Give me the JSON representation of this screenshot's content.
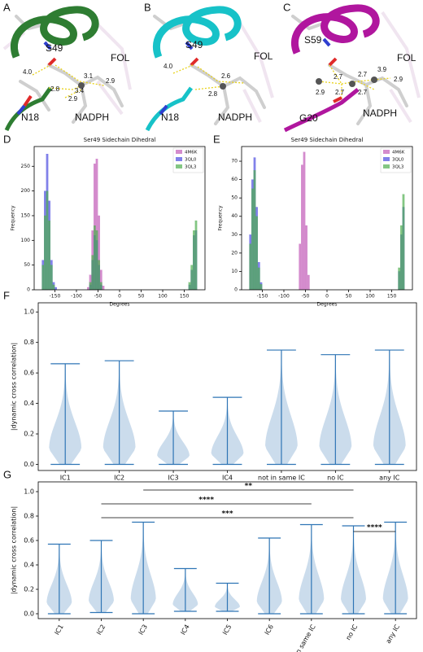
{
  "structures": [
    {
      "panel": "A",
      "labels": [
        "S49",
        "FOL",
        "NADPH",
        "N18"
      ],
      "distances": [
        "4.0",
        "3.1",
        "2.9",
        "2.8",
        "3.4",
        "2.9"
      ]
    },
    {
      "panel": "B",
      "labels": [
        "S49",
        "FOL",
        "NADPH",
        "N18"
      ],
      "distances": [
        "4.0",
        "2.6",
        "2.8"
      ]
    },
    {
      "panel": "C",
      "labels": [
        "S59",
        "FOL",
        "NADPH",
        "G20"
      ],
      "distances": [
        "2.7",
        "3.9",
        "2.9",
        "2.7",
        "2.9",
        "2.7",
        "2.7"
      ]
    }
  ],
  "chart_data": [
    {
      "type": "histogram",
      "panel": "D",
      "title": "Ser49 Sidechain Dihedral",
      "x_label": "Degrees",
      "y_label": "Frequency",
      "bins": [
        -180,
        -175,
        -170,
        -165,
        -160,
        -155,
        -150,
        -145,
        -140,
        -135,
        -130,
        -125,
        -120,
        -115,
        -110,
        -105,
        -100,
        -95,
        -90,
        -85,
        -80,
        -75,
        -70,
        -65,
        -60,
        -55,
        -50,
        -45,
        -40,
        -35,
        -30,
        -25,
        -20,
        -15,
        -10,
        -5,
        0,
        5,
        10,
        15,
        20,
        25,
        30,
        35,
        40,
        45,
        50,
        55,
        60,
        65,
        70,
        75,
        80,
        85,
        90,
        95,
        100,
        105,
        110,
        115,
        120,
        125,
        130,
        135,
        140,
        145,
        150,
        155,
        160,
        165,
        170,
        175,
        180
      ],
      "series": [
        {
          "name": "4M6K",
          "color": "#c25bb8",
          "values": [
            0,
            0,
            0,
            0,
            0,
            0,
            0,
            0,
            0,
            0,
            0,
            0,
            0,
            0,
            0,
            0,
            0,
            0,
            0,
            0,
            0,
            5,
            30,
            120,
            255,
            265,
            150,
            40,
            8,
            0,
            0,
            0,
            0,
            0,
            0,
            0,
            0,
            0,
            0,
            0,
            0,
            0,
            0,
            0,
            0,
            0,
            0,
            0,
            0,
            0,
            0,
            0,
            0,
            0,
            0,
            0,
            0,
            0,
            0,
            0,
            0,
            0,
            0,
            0,
            0,
            0,
            0,
            0,
            0,
            0,
            0,
            0
          ]
        },
        {
          "name": "3QL0",
          "color": "#4b4be0",
          "values": [
            60,
            200,
            275,
            180,
            60,
            15,
            5,
            0,
            0,
            0,
            0,
            0,
            0,
            0,
            0,
            0,
            0,
            0,
            0,
            0,
            0,
            0,
            10,
            60,
            110,
            100,
            50,
            10,
            0,
            0,
            0,
            0,
            0,
            0,
            0,
            0,
            0,
            0,
            0,
            0,
            0,
            0,
            0,
            0,
            0,
            0,
            0,
            0,
            0,
            0,
            0,
            0,
            0,
            0,
            0,
            0,
            0,
            0,
            0,
            0,
            0,
            0,
            0,
            0,
            0,
            0,
            0,
            0,
            10,
            40,
            110,
            120
          ]
        },
        {
          "name": "3QL3",
          "color": "#4fae4f",
          "values": [
            50,
            150,
            200,
            140,
            50,
            10,
            0,
            0,
            0,
            0,
            0,
            0,
            0,
            0,
            0,
            0,
            0,
            0,
            0,
            0,
            0,
            0,
            15,
            70,
            130,
            120,
            60,
            15,
            0,
            0,
            0,
            0,
            0,
            0,
            0,
            0,
            0,
            0,
            0,
            0,
            0,
            0,
            0,
            0,
            0,
            0,
            0,
            0,
            0,
            0,
            0,
            0,
            0,
            0,
            0,
            0,
            0,
            0,
            0,
            0,
            0,
            0,
            0,
            0,
            0,
            0,
            0,
            0,
            15,
            50,
            120,
            140
          ]
        }
      ],
      "xlim": [
        -198,
        198
      ],
      "xticks": [
        -150,
        -100,
        -50,
        0,
        50,
        100,
        150
      ],
      "ylim": [
        0,
        290
      ],
      "yticks": [
        0,
        50,
        100,
        150,
        200,
        250
      ],
      "legend": "upper right"
    },
    {
      "type": "histogram",
      "panel": "E",
      "title": "Ser49 Sidechain Dihedral",
      "x_label": "Degrees",
      "y_label": "Frequency",
      "bins": [
        -180,
        -175,
        -170,
        -165,
        -160,
        -155,
        -150,
        -145,
        -140,
        -135,
        -130,
        -125,
        -120,
        -115,
        -110,
        -105,
        -100,
        -95,
        -90,
        -85,
        -80,
        -75,
        -70,
        -65,
        -60,
        -55,
        -50,
        -45,
        -40,
        -35,
        -30,
        -25,
        -20,
        -15,
        -10,
        -5,
        0,
        5,
        10,
        15,
        20,
        25,
        30,
        35,
        40,
        45,
        50,
        55,
        60,
        65,
        70,
        75,
        80,
        85,
        90,
        95,
        100,
        105,
        110,
        115,
        120,
        125,
        130,
        135,
        140,
        145,
        150,
        155,
        160,
        165,
        170,
        175,
        180
      ],
      "series": [
        {
          "name": "4M6K",
          "color": "#c25bb8",
          "values": [
            0,
            0,
            0,
            0,
            0,
            0,
            0,
            0,
            0,
            0,
            0,
            0,
            0,
            0,
            0,
            0,
            0,
            0,
            0,
            0,
            0,
            0,
            0,
            25,
            68,
            75,
            35,
            8,
            0,
            0,
            0,
            0,
            0,
            0,
            0,
            0,
            0,
            0,
            0,
            0,
            0,
            0,
            0,
            0,
            0,
            0,
            0,
            0,
            0,
            0,
            0,
            0,
            0,
            0,
            0,
            0,
            0,
            0,
            0,
            0,
            0,
            0,
            0,
            0,
            0,
            0,
            0,
            0,
            0,
            0,
            0,
            0
          ]
        },
        {
          "name": "3QL0",
          "color": "#4b4be0",
          "values": [
            30,
            60,
            72,
            45,
            15,
            4,
            0,
            0,
            0,
            0,
            0,
            0,
            0,
            0,
            0,
            0,
            0,
            0,
            0,
            0,
            0,
            0,
            0,
            0,
            0,
            0,
            0,
            0,
            0,
            0,
            0,
            0,
            0,
            0,
            0,
            0,
            0,
            0,
            0,
            0,
            0,
            0,
            0,
            0,
            0,
            0,
            0,
            0,
            0,
            0,
            0,
            0,
            0,
            0,
            0,
            0,
            0,
            0,
            0,
            0,
            0,
            0,
            0,
            0,
            0,
            0,
            0,
            0,
            0,
            10,
            30,
            45
          ]
        },
        {
          "name": "3QL3",
          "color": "#4fae4f",
          "values": [
            25,
            55,
            65,
            40,
            12,
            3,
            0,
            0,
            0,
            0,
            0,
            0,
            0,
            0,
            0,
            0,
            0,
            0,
            0,
            0,
            0,
            0,
            0,
            0,
            0,
            0,
            0,
            0,
            0,
            0,
            0,
            0,
            0,
            0,
            0,
            0,
            0,
            0,
            0,
            0,
            0,
            0,
            0,
            0,
            0,
            0,
            0,
            0,
            0,
            0,
            0,
            0,
            0,
            0,
            0,
            0,
            0,
            0,
            0,
            0,
            0,
            0,
            0,
            0,
            0,
            0,
            0,
            0,
            0,
            12,
            35,
            52
          ]
        }
      ],
      "xlim": [
        -198,
        198
      ],
      "xticks": [
        -150,
        -100,
        -50,
        0,
        50,
        100,
        150
      ],
      "ylim": [
        0,
        78
      ],
      "yticks": [
        0,
        10,
        20,
        30,
        40,
        50,
        60,
        70
      ],
      "legend": "upper right"
    },
    {
      "type": "violin",
      "panel": "F",
      "y_label": "|dynamic cross correlation|",
      "color": "#2f75b5",
      "categories": [
        "IC1",
        "IC2",
        "IC3",
        "IC4",
        "not in same IC",
        "no IC",
        "any IC"
      ],
      "maxima": [
        0.66,
        0.68,
        0.35,
        0.44,
        0.75,
        0.72,
        0.75
      ],
      "minima": [
        0.0,
        0.0,
        0.0,
        0.0,
        0.0,
        0.0,
        0.0
      ],
      "ylim": [
        -0.04,
        1.06
      ],
      "yticks": [
        {
          "value": 0,
          "label": "0.0"
        },
        0.2,
        0.4,
        0.6,
        0.8,
        {
          "value": 1,
          "label": "1.0"
        }
      ]
    },
    {
      "type": "violin",
      "panel": "G",
      "y_label": "|dynamic cross correlation|",
      "color": "#2f75b5",
      "categories": [
        "IC1",
        "IC2",
        "IC3",
        "IC4",
        "IC5",
        "IC6",
        "not in same IC",
        "no IC",
        "any IC"
      ],
      "maxima": [
        0.57,
        0.6,
        0.75,
        0.37,
        0.25,
        0.62,
        0.73,
        0.72,
        0.75
      ],
      "minima": [
        0.0,
        0.01,
        0.0,
        0.02,
        0.02,
        0.0,
        0.0,
        0.0,
        0.0
      ],
      "ylim": [
        -0.04,
        1.08
      ],
      "yticks": [
        {
          "value": 0,
          "label": "0.0"
        },
        0.2,
        0.4,
        0.6,
        0.8,
        {
          "value": 1,
          "label": "1.0"
        }
      ],
      "brackets": [
        {
          "between": [
            "IC3",
            "no IC"
          ],
          "label": "**"
        },
        {
          "between": [
            "IC2",
            "not in same IC"
          ],
          "label": "****"
        },
        {
          "between": [
            "IC2",
            "no IC"
          ],
          "label": "***"
        },
        {
          "between": [
            "no IC",
            "any IC"
          ],
          "label": "****"
        }
      ]
    }
  ]
}
